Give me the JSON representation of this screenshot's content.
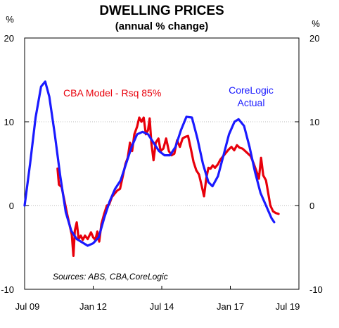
{
  "chart_data": {
    "type": "line",
    "title": "DWELLING PRICES",
    "subtitle": "(annual % change)",
    "left_unit": "%",
    "right_unit": "%",
    "source_note": "Sources: ABS, CBA,CoreLogic",
    "xlim": [
      2009.5,
      2019.5
    ],
    "ylim": [
      -10,
      20
    ],
    "yticks": [
      -10,
      0,
      10,
      20
    ],
    "ytick_labels": [
      "-10",
      "0",
      "10",
      "20"
    ],
    "xticks": [
      {
        "value": 2009.5,
        "label": "Jul 09"
      },
      {
        "value": 2012.0,
        "label": "Jan 12"
      },
      {
        "value": 2014.5,
        "label": "Jul 14"
      },
      {
        "value": 2017.0,
        "label": "Jan 17"
      },
      {
        "value": 2019.5,
        "label": "Jul 19"
      }
    ],
    "grid": "horizontal dotted",
    "series": [
      {
        "name": "CBA Model - Rsq 85%",
        "color": "#e8000b",
        "points": [
          [
            2010.7,
            4.4
          ],
          [
            2010.75,
            2.5
          ],
          [
            2010.85,
            2.2
          ],
          [
            2010.95,
            0.6
          ],
          [
            2011.05,
            -1.0
          ],
          [
            2011.15,
            -2.5
          ],
          [
            2011.22,
            -3.5
          ],
          [
            2011.28,
            -6.0
          ],
          [
            2011.33,
            -3.0
          ],
          [
            2011.4,
            -2.0
          ],
          [
            2011.47,
            -4.0
          ],
          [
            2011.55,
            -3.6
          ],
          [
            2011.62,
            -4.1
          ],
          [
            2011.7,
            -3.6
          ],
          [
            2011.8,
            -4.0
          ],
          [
            2011.92,
            -3.2
          ],
          [
            2012.0,
            -3.8
          ],
          [
            2012.08,
            -4.1
          ],
          [
            2012.15,
            -3.1
          ],
          [
            2012.22,
            -4.3
          ],
          [
            2012.3,
            -2.2
          ],
          [
            2012.4,
            -1.0
          ],
          [
            2012.5,
            0.0
          ],
          [
            2012.58,
            0.1
          ],
          [
            2012.68,
            1.0
          ],
          [
            2012.78,
            1.4
          ],
          [
            2012.88,
            1.8
          ],
          [
            2012.98,
            2.0
          ],
          [
            2013.08,
            3.5
          ],
          [
            2013.18,
            5.0
          ],
          [
            2013.26,
            5.7
          ],
          [
            2013.34,
            7.5
          ],
          [
            2013.42,
            6.5
          ],
          [
            2013.5,
            8.5
          ],
          [
            2013.6,
            9.4
          ],
          [
            2013.68,
            10.5
          ],
          [
            2013.76,
            10.0
          ],
          [
            2013.84,
            10.5
          ],
          [
            2013.92,
            8.5
          ],
          [
            2014.0,
            9.0
          ],
          [
            2014.06,
            10.4
          ],
          [
            2014.12,
            7.5
          ],
          [
            2014.2,
            5.4
          ],
          [
            2014.28,
            7.5
          ],
          [
            2014.38,
            8.0
          ],
          [
            2014.46,
            6.5
          ],
          [
            2014.56,
            6.8
          ],
          [
            2014.66,
            8.0
          ],
          [
            2014.76,
            6.5
          ],
          [
            2014.86,
            6.0
          ],
          [
            2014.96,
            6.2
          ],
          [
            2015.06,
            7.8
          ],
          [
            2015.16,
            7.0
          ],
          [
            2015.26,
            8.0
          ],
          [
            2015.36,
            8.2
          ],
          [
            2015.46,
            8.3
          ],
          [
            2015.56,
            6.8
          ],
          [
            2015.66,
            5.2
          ],
          [
            2015.76,
            4.2
          ],
          [
            2015.86,
            3.7
          ],
          [
            2015.96,
            2.3
          ],
          [
            2016.04,
            1.1
          ],
          [
            2016.12,
            3.2
          ],
          [
            2016.2,
            4.5
          ],
          [
            2016.28,
            4.4
          ],
          [
            2016.36,
            4.8
          ],
          [
            2016.44,
            4.5
          ],
          [
            2016.54,
            4.9
          ],
          [
            2016.64,
            5.5
          ],
          [
            2016.74,
            5.9
          ],
          [
            2016.84,
            6.3
          ],
          [
            2016.94,
            6.7
          ],
          [
            2017.04,
            7.0
          ],
          [
            2017.14,
            6.6
          ],
          [
            2017.24,
            7.2
          ],
          [
            2017.34,
            6.9
          ],
          [
            2017.44,
            6.8
          ],
          [
            2017.54,
            6.5
          ],
          [
            2017.64,
            6.2
          ],
          [
            2017.74,
            5.9
          ],
          [
            2017.84,
            5.1
          ],
          [
            2017.94,
            4.2
          ],
          [
            2018.04,
            3.2
          ],
          [
            2018.12,
            5.7
          ],
          [
            2018.2,
            3.6
          ],
          [
            2018.3,
            3.0
          ],
          [
            2018.38,
            1.5
          ],
          [
            2018.46,
            0.0
          ],
          [
            2018.56,
            -0.7
          ],
          [
            2018.66,
            -0.9
          ],
          [
            2018.76,
            -1.0
          ]
        ]
      },
      {
        "name": "CoreLogic Actual",
        "color": "#1a1aff",
        "points": [
          [
            2009.5,
            0.0
          ],
          [
            2009.7,
            5.0
          ],
          [
            2009.9,
            10.5
          ],
          [
            2010.1,
            14.2
          ],
          [
            2010.25,
            14.8
          ],
          [
            2010.4,
            13.0
          ],
          [
            2010.6,
            8.5
          ],
          [
            2010.8,
            3.5
          ],
          [
            2011.0,
            -0.8
          ],
          [
            2011.2,
            -3.0
          ],
          [
            2011.4,
            -4.0
          ],
          [
            2011.6,
            -4.4
          ],
          [
            2011.8,
            -4.8
          ],
          [
            2012.0,
            -4.5
          ],
          [
            2012.2,
            -3.8
          ],
          [
            2012.4,
            -1.5
          ],
          [
            2012.6,
            0.5
          ],
          [
            2012.8,
            2.0
          ],
          [
            2013.0,
            3.0
          ],
          [
            2013.2,
            5.0
          ],
          [
            2013.4,
            7.0
          ],
          [
            2013.6,
            8.5
          ],
          [
            2013.8,
            8.8
          ],
          [
            2014.0,
            8.5
          ],
          [
            2014.2,
            7.5
          ],
          [
            2014.4,
            6.5
          ],
          [
            2014.6,
            6.0
          ],
          [
            2014.8,
            6.0
          ],
          [
            2015.0,
            7.0
          ],
          [
            2015.2,
            9.0
          ],
          [
            2015.4,
            10.6
          ],
          [
            2015.6,
            10.5
          ],
          [
            2015.8,
            8.0
          ],
          [
            2016.0,
            5.0
          ],
          [
            2016.2,
            2.8
          ],
          [
            2016.35,
            2.3
          ],
          [
            2016.55,
            3.5
          ],
          [
            2016.75,
            6.0
          ],
          [
            2016.95,
            8.5
          ],
          [
            2017.15,
            10.0
          ],
          [
            2017.3,
            10.3
          ],
          [
            2017.5,
            9.5
          ],
          [
            2017.7,
            7.0
          ],
          [
            2017.9,
            4.0
          ],
          [
            2018.1,
            1.5
          ],
          [
            2018.3,
            0.0
          ],
          [
            2018.5,
            -1.5
          ],
          [
            2018.6,
            -2.0
          ]
        ]
      }
    ],
    "annotations": [
      {
        "text": "CBA Model - Rsq 85%",
        "series": "CBA Model - Rsq 85%"
      },
      {
        "text": "CoreLogic",
        "series": "CoreLogic Actual"
      },
      {
        "text": "Actual",
        "series": "CoreLogic Actual"
      }
    ]
  }
}
